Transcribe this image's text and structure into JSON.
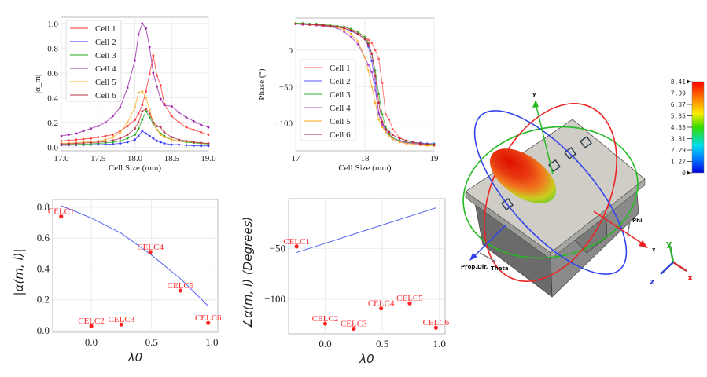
{
  "chart_data": [
    {
      "id": "magnitude-vs-cellsize",
      "type": "line",
      "xlabel": "Cell Size (mm)",
      "ylabel": "|α_m|",
      "xlim": [
        17.0,
        19.0
      ],
      "ylim": [
        -0.03,
        1.05
      ],
      "xticks": [
        "17.0",
        "17.5",
        "18.0",
        "18.5",
        "19.0"
      ],
      "yticks": [
        "0.0",
        "0.2",
        "0.4",
        "0.6",
        "0.8",
        "1.0"
      ],
      "grid": true,
      "legend": "top-left",
      "x": [
        17.0,
        17.1,
        17.2,
        17.3,
        17.4,
        17.5,
        17.6,
        17.7,
        17.8,
        17.9,
        18.0,
        18.05,
        18.1,
        18.15,
        18.2,
        18.25,
        18.3,
        18.35,
        18.4,
        18.5,
        18.6,
        18.7,
        18.8,
        18.9,
        19.0
      ],
      "series": [
        {
          "name": "Cell 1",
          "color": "#ff3333",
          "values": [
            0.05,
            0.055,
            0.06,
            0.065,
            0.07,
            0.08,
            0.09,
            0.1,
            0.13,
            0.17,
            0.22,
            0.27,
            0.34,
            0.45,
            0.59,
            0.74,
            0.58,
            0.5,
            0.35,
            0.25,
            0.2,
            0.16,
            0.14,
            0.12,
            0.1
          ]
        },
        {
          "name": "Cell 2",
          "color": "#3333ff",
          "values": [
            0.015,
            0.016,
            0.017,
            0.018,
            0.019,
            0.02,
            0.022,
            0.025,
            0.03,
            0.04,
            0.06,
            0.09,
            0.13,
            0.11,
            0.09,
            0.07,
            0.05,
            0.04,
            0.03,
            0.02,
            0.02,
            0.015,
            0.012,
            0.01,
            0.01
          ]
        },
        {
          "name": "Cell 3",
          "color": "#22aa22",
          "values": [
            0.02,
            0.021,
            0.022,
            0.024,
            0.026,
            0.03,
            0.035,
            0.04,
            0.05,
            0.07,
            0.1,
            0.15,
            0.22,
            0.29,
            0.24,
            0.19,
            0.14,
            0.11,
            0.09,
            0.06,
            0.05,
            0.04,
            0.035,
            0.03,
            0.025
          ]
        },
        {
          "name": "Cell 4",
          "color": "#9922aa",
          "values": [
            0.09,
            0.1,
            0.11,
            0.13,
            0.15,
            0.17,
            0.2,
            0.25,
            0.32,
            0.48,
            0.7,
            0.91,
            1.0,
            0.96,
            0.81,
            0.6,
            0.49,
            0.39,
            0.34,
            0.33,
            0.28,
            0.24,
            0.21,
            0.18,
            0.16
          ]
        },
        {
          "name": "Cell 5",
          "color": "#ffaa22",
          "values": [
            0.03,
            0.032,
            0.035,
            0.04,
            0.045,
            0.05,
            0.06,
            0.08,
            0.12,
            0.2,
            0.32,
            0.44,
            0.45,
            0.4,
            0.3,
            0.2,
            0.14,
            0.1,
            0.08,
            0.06,
            0.05,
            0.045,
            0.04,
            0.035,
            0.03
          ]
        },
        {
          "name": "Cell 6",
          "color": "#bb3344",
          "values": [
            0.025,
            0.027,
            0.03,
            0.033,
            0.036,
            0.04,
            0.045,
            0.055,
            0.07,
            0.1,
            0.15,
            0.2,
            0.29,
            0.31,
            0.27,
            0.2,
            0.17,
            0.16,
            0.12,
            0.08,
            0.06,
            0.05,
            0.04,
            0.035,
            0.03
          ]
        }
      ]
    },
    {
      "id": "phase-vs-cellsize",
      "type": "line",
      "xlabel": "Cell Size (mm)",
      "ylabel": "Phase (°)",
      "xlim": [
        17.0,
        19.0
      ],
      "ylim": [
        -138,
        44
      ],
      "xticks": [
        "17",
        "18",
        "19"
      ],
      "yticks": [
        "0",
        "−50",
        "−100"
      ],
      "ytick_values": [
        0,
        -50,
        -100
      ],
      "grid": true,
      "legend": "bottom-left",
      "x": [
        17.0,
        17.1,
        17.2,
        17.3,
        17.4,
        17.5,
        17.6,
        17.7,
        17.8,
        17.9,
        18.0,
        18.05,
        18.1,
        18.15,
        18.2,
        18.25,
        18.3,
        18.35,
        18.4,
        18.5,
        18.6,
        18.7,
        18.8,
        18.9,
        19.0
      ],
      "series": [
        {
          "name": "Cell 1",
          "color": "#ff5555",
          "values": [
            37,
            36,
            36,
            35,
            35,
            34,
            33,
            32,
            28,
            24,
            18,
            14,
            10,
            0,
            -12,
            -45,
            -88,
            -95,
            -108,
            -120,
            -124,
            -126,
            -128,
            -129,
            -130
          ]
        },
        {
          "name": "Cell 2",
          "color": "#5555ff",
          "values": [
            36,
            36,
            35,
            35,
            34,
            33,
            32,
            30,
            26,
            22,
            15,
            5,
            -15,
            -45,
            -88,
            -100,
            -110,
            -115,
            -120,
            -124,
            -126,
            -127,
            -127,
            -128,
            -128
          ]
        },
        {
          "name": "Cell 3",
          "color": "#33aa33",
          "values": [
            37,
            37,
            36,
            36,
            35,
            34,
            33,
            32,
            29,
            25,
            18,
            10,
            -5,
            -28,
            -60,
            -88,
            -105,
            -115,
            -120,
            -124,
            -126,
            -127,
            -128,
            -129,
            -129
          ]
        },
        {
          "name": "Cell 4",
          "color": "#aa44cc",
          "values": [
            36,
            35,
            35,
            34,
            33,
            32,
            30,
            25,
            18,
            8,
            -10,
            -20,
            -30,
            -55,
            -85,
            -103,
            -112,
            -118,
            -122,
            -125,
            -127,
            -128,
            -129,
            -130,
            -130
          ]
        },
        {
          "name": "Cell 5",
          "color": "#ffaa22",
          "values": [
            36,
            36,
            35,
            35,
            34,
            33,
            31,
            28,
            22,
            12,
            -10,
            -28,
            -50,
            -72,
            -95,
            -105,
            -112,
            -118,
            -122,
            -126,
            -128,
            -129,
            -130,
            -131,
            -131
          ]
        },
        {
          "name": "Cell 6",
          "color": "#bb2233",
          "values": [
            36,
            36,
            35,
            35,
            34,
            33,
            32,
            30,
            27,
            22,
            15,
            8,
            -5,
            -35,
            -72,
            -98,
            -108,
            -112,
            -116,
            -121,
            -124,
            -126,
            -128,
            -129,
            -130
          ]
        }
      ]
    },
    {
      "id": "magnitude-vs-lambda",
      "type": "scatter",
      "xlabel": "λ0",
      "ylabel": "|α(m, l)|",
      "xlim": [
        -0.32,
        1.05
      ],
      "ylim": [
        -0.01,
        0.85
      ],
      "xticks": [
        "0.0",
        "0.5",
        "1.0"
      ],
      "xtick_values": [
        0,
        0.5,
        1.0
      ],
      "yticks": [
        "0.0",
        "0.2",
        "0.4",
        "0.6",
        "0.8"
      ],
      "ytick_values": [
        0,
        0.2,
        0.4,
        0.6,
        0.8
      ],
      "grid": true,
      "points": [
        {
          "label": "CELC1",
          "x": -0.25,
          "y": 0.74
        },
        {
          "label": "CELC2",
          "x": 0.0,
          "y": 0.03
        },
        {
          "label": "CELC3",
          "x": 0.25,
          "y": 0.04
        },
        {
          "label": "CELC4",
          "x": 0.49,
          "y": 0.51
        },
        {
          "label": "CELC5",
          "x": 0.74,
          "y": 0.26
        },
        {
          "label": "CELC6",
          "x": 0.97,
          "y": 0.05
        }
      ],
      "fit_line": {
        "color": "#5566ee",
        "x": [
          -0.25,
          0.0,
          0.25,
          0.5,
          0.75,
          0.97
        ],
        "y": [
          0.81,
          0.73,
          0.63,
          0.49,
          0.33,
          0.16
        ]
      },
      "point_color": "#ff2222"
    },
    {
      "id": "phase-vs-lambda",
      "type": "scatter",
      "xlabel": "λ0",
      "ylabel": "∠α(m, l) (Degrees)",
      "xlim": [
        -0.32,
        1.05
      ],
      "ylim": [
        -134,
        -1
      ],
      "xticks": [
        "0.0",
        "0.5",
        "1.0"
      ],
      "xtick_values": [
        0,
        0.5,
        1.0
      ],
      "yticks": [
        "−50",
        "−100"
      ],
      "ytick_values": [
        -50,
        -100
      ],
      "grid": true,
      "points": [
        {
          "label": "CELC1",
          "x": -0.25,
          "y": -48
        },
        {
          "label": "CELC2",
          "x": 0.0,
          "y": -124
        },
        {
          "label": "CELC3",
          "x": 0.25,
          "y": -129
        },
        {
          "label": "CELC4",
          "x": 0.49,
          "y": -109
        },
        {
          "label": "CELC5",
          "x": 0.74,
          "y": -104
        },
        {
          "label": "CELC6",
          "x": 0.97,
          "y": -128
        }
      ],
      "fit_line": {
        "color": "#5566ee",
        "x": [
          -0.25,
          0.97
        ],
        "y": [
          -54,
          -10
        ]
      },
      "point_color": "#ff2222"
    }
  ],
  "radiation_view": {
    "colorbar_ticks": [
      "8.41",
      "7.39",
      "6.37",
      "5.35",
      "4.33",
      "3.31",
      "2.29",
      "1.27",
      "0"
    ],
    "axis_labels": {
      "x": "x",
      "y": "y",
      "prop_dir": "Prop.Dir.",
      "theta": "Theta",
      "phi": "Phi"
    },
    "triad_labels": {
      "x": "x",
      "y": "y",
      "z": "z"
    }
  }
}
